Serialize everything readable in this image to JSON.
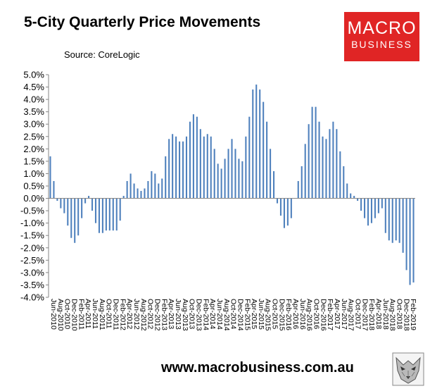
{
  "header": {
    "title": "5-City Quarterly Price Movements",
    "source": "Source: CoreLogic"
  },
  "logo": {
    "line1": "MACRO",
    "line2": "BUSINESS",
    "bg_color": "#e02525"
  },
  "footer": {
    "url": "www.macrobusiness.com.au"
  },
  "chart_data": {
    "type": "bar",
    "title": "5-City Quarterly Price Movements",
    "xlabel": "",
    "ylabel": "",
    "ylim": [
      -4.0,
      5.0
    ],
    "y_ticks": [
      "5.0%",
      "4.5%",
      "4.0%",
      "3.5%",
      "3.0%",
      "2.5%",
      "2.0%",
      "1.5%",
      "1.0%",
      "0.5%",
      "0.0%",
      "-0.5%",
      "-1.0%",
      "-1.5%",
      "-2.0%",
      "-2.5%",
      "-3.0%",
      "-3.5%",
      "-4.0%"
    ],
    "x_tick_labels": [
      "Jun-2010",
      "Aug-2010",
      "Oct-2010",
      "Dec-2010",
      "Feb-2011",
      "Apr-2011",
      "Jun-2011",
      "Aug-2011",
      "Oct-2011",
      "Dec-2011",
      "Feb-2012",
      "Apr-2012",
      "Jun-2012",
      "Aug-2012",
      "Oct-2012",
      "Dec-2012",
      "Feb-2013",
      "Apr-2013",
      "Jun-2013",
      "Aug-2013",
      "Oct-2013",
      "Dec-2013",
      "Feb-2014",
      "Apr-2014",
      "Jun-2014",
      "Aug-2014",
      "Oct-2014",
      "Dec-2014",
      "Feb-2015",
      "Apr-2015",
      "Jun-2015",
      "Aug-2015",
      "Oct-2015",
      "Dec-2015",
      "Feb-2016",
      "Apr-2016",
      "Jun-2016",
      "Aug-2016",
      "Oct-2016",
      "Dec-2016",
      "Feb-2017",
      "Apr-2017",
      "Jun-2017",
      "Aug-2017",
      "Oct-2017",
      "Dec-2017",
      "Feb-2018",
      "Apr-2018",
      "Jun-2018",
      "Aug-2018",
      "Oct-2018",
      "Dec-2018",
      "Feb-2019"
    ],
    "bar_color": "#4f81bd",
    "grid": false,
    "values": [
      1.7,
      0.7,
      -0.1,
      -0.4,
      -0.6,
      -1.1,
      -1.6,
      -1.8,
      -1.5,
      -0.8,
      -0.2,
      0.1,
      -0.5,
      -1.0,
      -1.4,
      -1.4,
      -1.3,
      -1.3,
      -1.3,
      -1.3,
      -0.9,
      0.1,
      0.7,
      1.0,
      0.6,
      0.4,
      0.3,
      0.4,
      0.7,
      1.1,
      1.0,
      0.6,
      0.8,
      1.7,
      2.4,
      2.6,
      2.5,
      2.3,
      2.3,
      2.5,
      3.1,
      3.4,
      3.3,
      2.8,
      2.5,
      2.6,
      2.5,
      2.0,
      1.4,
      1.2,
      1.6,
      2.0,
      2.4,
      2.0,
      1.6,
      1.5,
      2.5,
      3.3,
      4.4,
      4.6,
      4.4,
      3.9,
      3.1,
      2.0,
      1.1,
      -0.2,
      -0.7,
      -1.2,
      -1.1,
      -0.8,
      0.0,
      0.7,
      1.3,
      2.2,
      3.0,
      3.7,
      3.7,
      3.1,
      2.5,
      2.4,
      2.8,
      3.1,
      2.8,
      1.9,
      1.3,
      0.6,
      0.2,
      0.1,
      -0.1,
      -0.5,
      -0.8,
      -1.1,
      -1.0,
      -0.8,
      -0.6,
      -0.4,
      -1.4,
      -1.7,
      -1.8,
      -1.7,
      -1.8,
      -2.2,
      -2.9,
      -3.5,
      -3.4
    ]
  }
}
